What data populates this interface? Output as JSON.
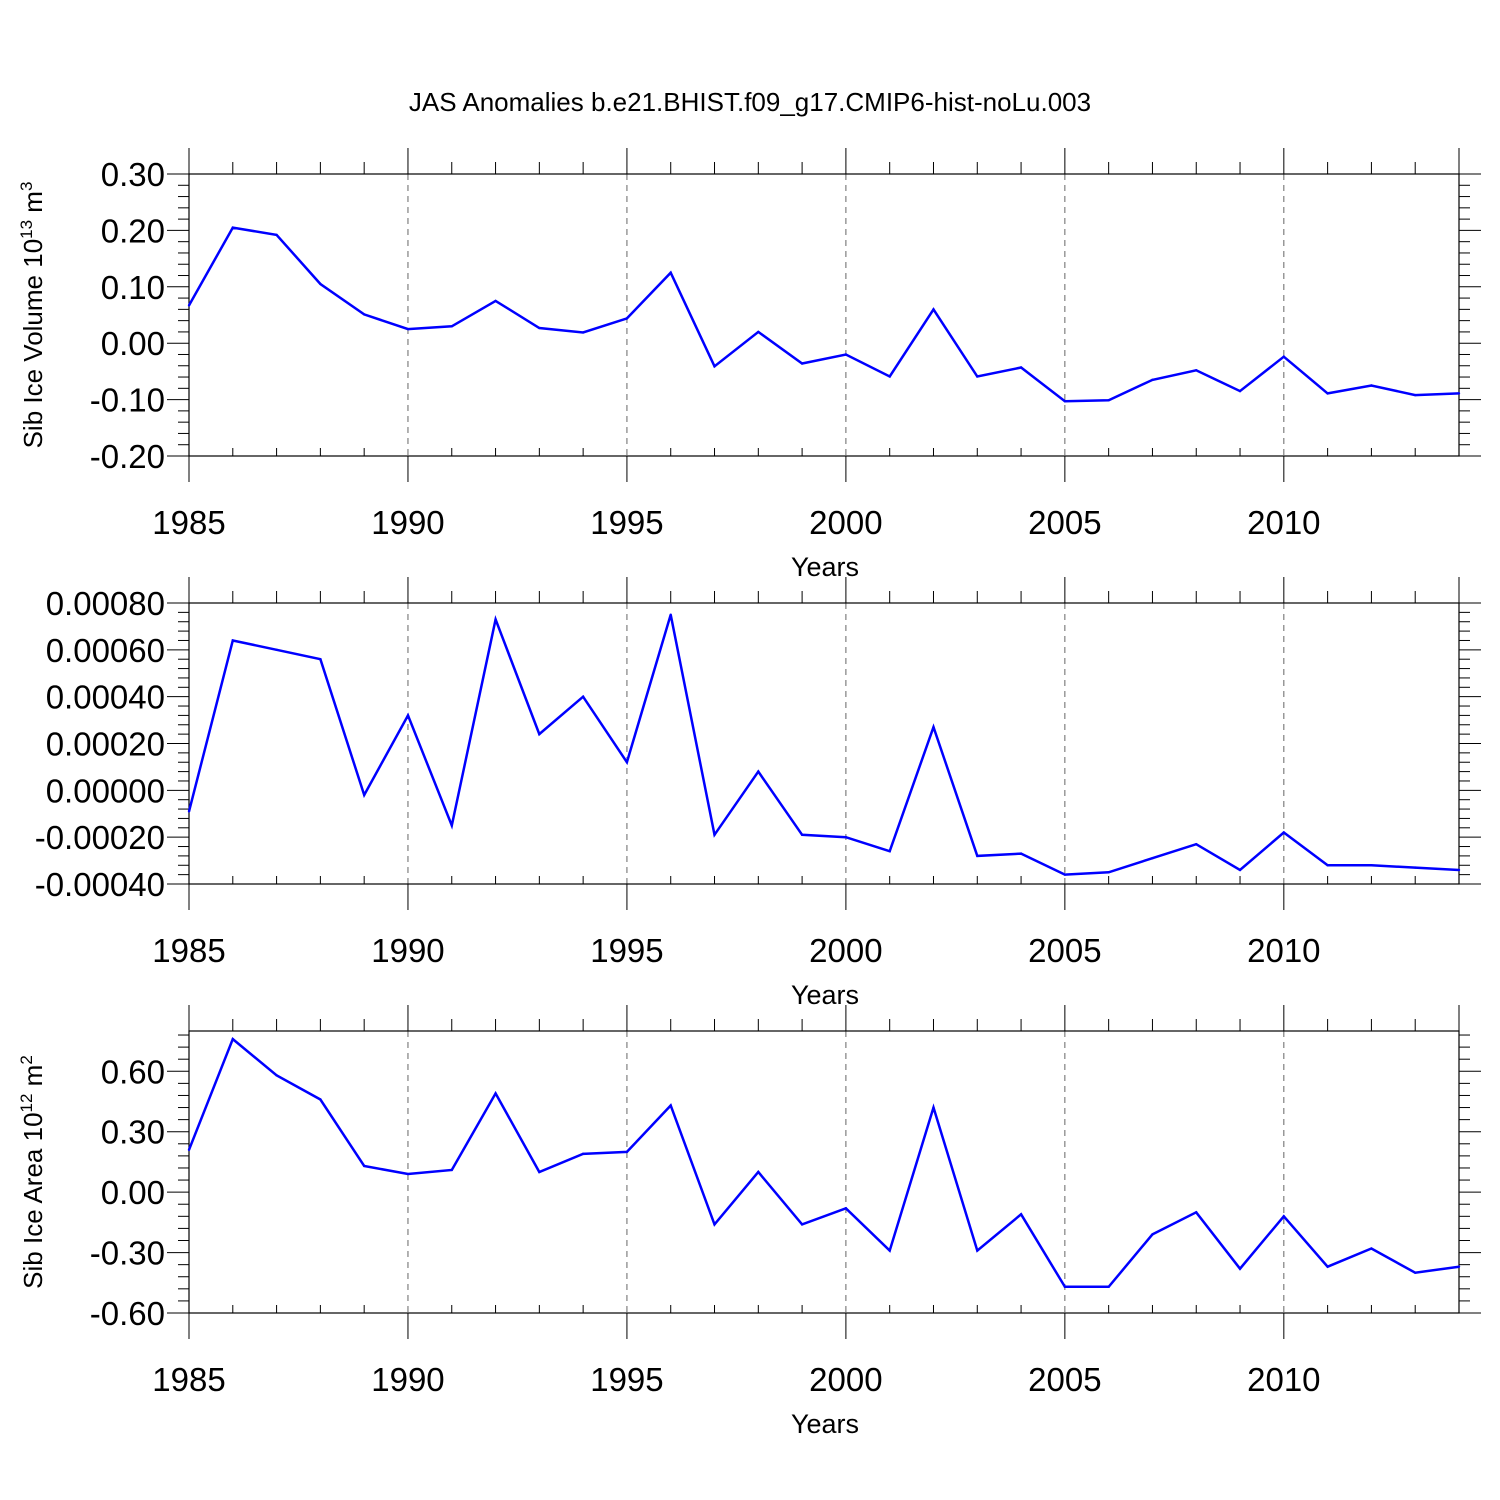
{
  "figure_title": "JAS Anomalies b.e21.BHIST.f09_g17.CMIP6-hist-noLu.003",
  "line_color": "#0000ff",
  "chart_data": [
    {
      "type": "line",
      "title": "JAS Anomalies b.e21.BHIST.f09_g17.CMIP6-hist-noLu.003",
      "xlabel": "Years",
      "ylabel": "Sib Ice Volume 10",
      "ylabel_exp": "13",
      "ylabel_unit": " m",
      "ylabel_unit_exp": "3",
      "xlim": [
        1985,
        2014
      ],
      "ylim": [
        -0.2,
        0.3
      ],
      "xticks": [
        1985,
        1990,
        1995,
        2000,
        2005,
        2010
      ],
      "yticks": [
        "0.30",
        "0.20",
        "0.10",
        "0.00",
        "-0.10",
        "-0.20"
      ],
      "ytick_values": [
        0.3,
        0.2,
        0.1,
        0.0,
        -0.1,
        -0.2
      ],
      "grid": "vertical dashed at major x ticks",
      "x": [
        1985,
        1986,
        1987,
        1988,
        1989,
        1990,
        1991,
        1992,
        1993,
        1994,
        1995,
        1996,
        1997,
        1998,
        1999,
        2000,
        2001,
        2002,
        2003,
        2004,
        2005,
        2006,
        2007,
        2008,
        2009,
        2010,
        2011,
        2012,
        2013,
        2014
      ],
      "values": [
        0.067,
        0.205,
        0.192,
        0.105,
        0.051,
        0.025,
        0.03,
        0.075,
        0.027,
        0.019,
        0.044,
        0.125,
        -0.041,
        0.02,
        -0.036,
        -0.02,
        -0.059,
        0.06,
        -0.059,
        -0.043,
        -0.103,
        -0.101,
        -0.065,
        -0.048,
        -0.085,
        -0.024,
        -0.089,
        -0.075,
        -0.092,
        -0.089
      ]
    },
    {
      "type": "line",
      "xlabel": "Years",
      "ylabel": "",
      "xlim": [
        1985,
        2014
      ],
      "ylim": [
        -0.0004,
        0.0008
      ],
      "xticks": [
        1985,
        1990,
        1995,
        2000,
        2005,
        2010
      ],
      "yticks": [
        "0.00080",
        "0.00060",
        "0.00040",
        "0.00020",
        "0.00000",
        "-0.00020",
        "-0.00040"
      ],
      "ytick_values": [
        0.0008,
        0.0006,
        0.0004,
        0.0002,
        0.0,
        -0.0002,
        -0.0004
      ],
      "grid": "vertical dashed at major x ticks",
      "x": [
        1985,
        1986,
        1987,
        1988,
        1989,
        1990,
        1991,
        1992,
        1993,
        1994,
        1995,
        1996,
        1997,
        1998,
        1999,
        2000,
        2001,
        2002,
        2003,
        2004,
        2005,
        2006,
        2007,
        2008,
        2009,
        2010,
        2011,
        2012,
        2013,
        2014
      ],
      "values": [
        -9e-05,
        0.00064,
        0.0006,
        0.00056,
        -2e-05,
        0.00032,
        -0.00015,
        0.00073,
        0.00024,
        0.0004,
        0.00012,
        0.00075,
        -0.00019,
        8e-05,
        -0.00019,
        -0.0002,
        -0.00026,
        0.00027,
        -0.00028,
        -0.00027,
        -0.00036,
        -0.00035,
        -0.00029,
        -0.00023,
        -0.00034,
        -0.00018,
        -0.00032,
        -0.00032,
        -0.00033,
        -0.00034
      ]
    },
    {
      "type": "line",
      "xlabel": "Years",
      "ylabel": "Sib Ice Area 10",
      "ylabel_exp": "12",
      "ylabel_unit": " m",
      "ylabel_unit_exp": "2",
      "xlim": [
        1985,
        2014
      ],
      "ylim": [
        -0.6,
        0.8
      ],
      "xticks": [
        1985,
        1990,
        1995,
        2000,
        2005,
        2010
      ],
      "yticks": [
        "0.60",
        "0.30",
        "0.00",
        "-0.30",
        "-0.60"
      ],
      "ytick_values": [
        0.6,
        0.3,
        0.0,
        -0.3,
        -0.6
      ],
      "grid": "vertical dashed at major x ticks",
      "x": [
        1985,
        1986,
        1987,
        1988,
        1989,
        1990,
        1991,
        1992,
        1993,
        1994,
        1995,
        1996,
        1997,
        1998,
        1999,
        2000,
        2001,
        2002,
        2003,
        2004,
        2005,
        2006,
        2007,
        2008,
        2009,
        2010,
        2011,
        2012,
        2013,
        2014
      ],
      "values": [
        0.21,
        0.76,
        0.58,
        0.46,
        0.13,
        0.09,
        0.11,
        0.49,
        0.1,
        0.19,
        0.2,
        0.43,
        -0.16,
        0.1,
        -0.16,
        -0.08,
        -0.29,
        0.42,
        -0.29,
        -0.11,
        -0.47,
        -0.47,
        -0.21,
        -0.1,
        -0.38,
        -0.12,
        -0.37,
        -0.28,
        -0.4,
        -0.37
      ]
    }
  ]
}
